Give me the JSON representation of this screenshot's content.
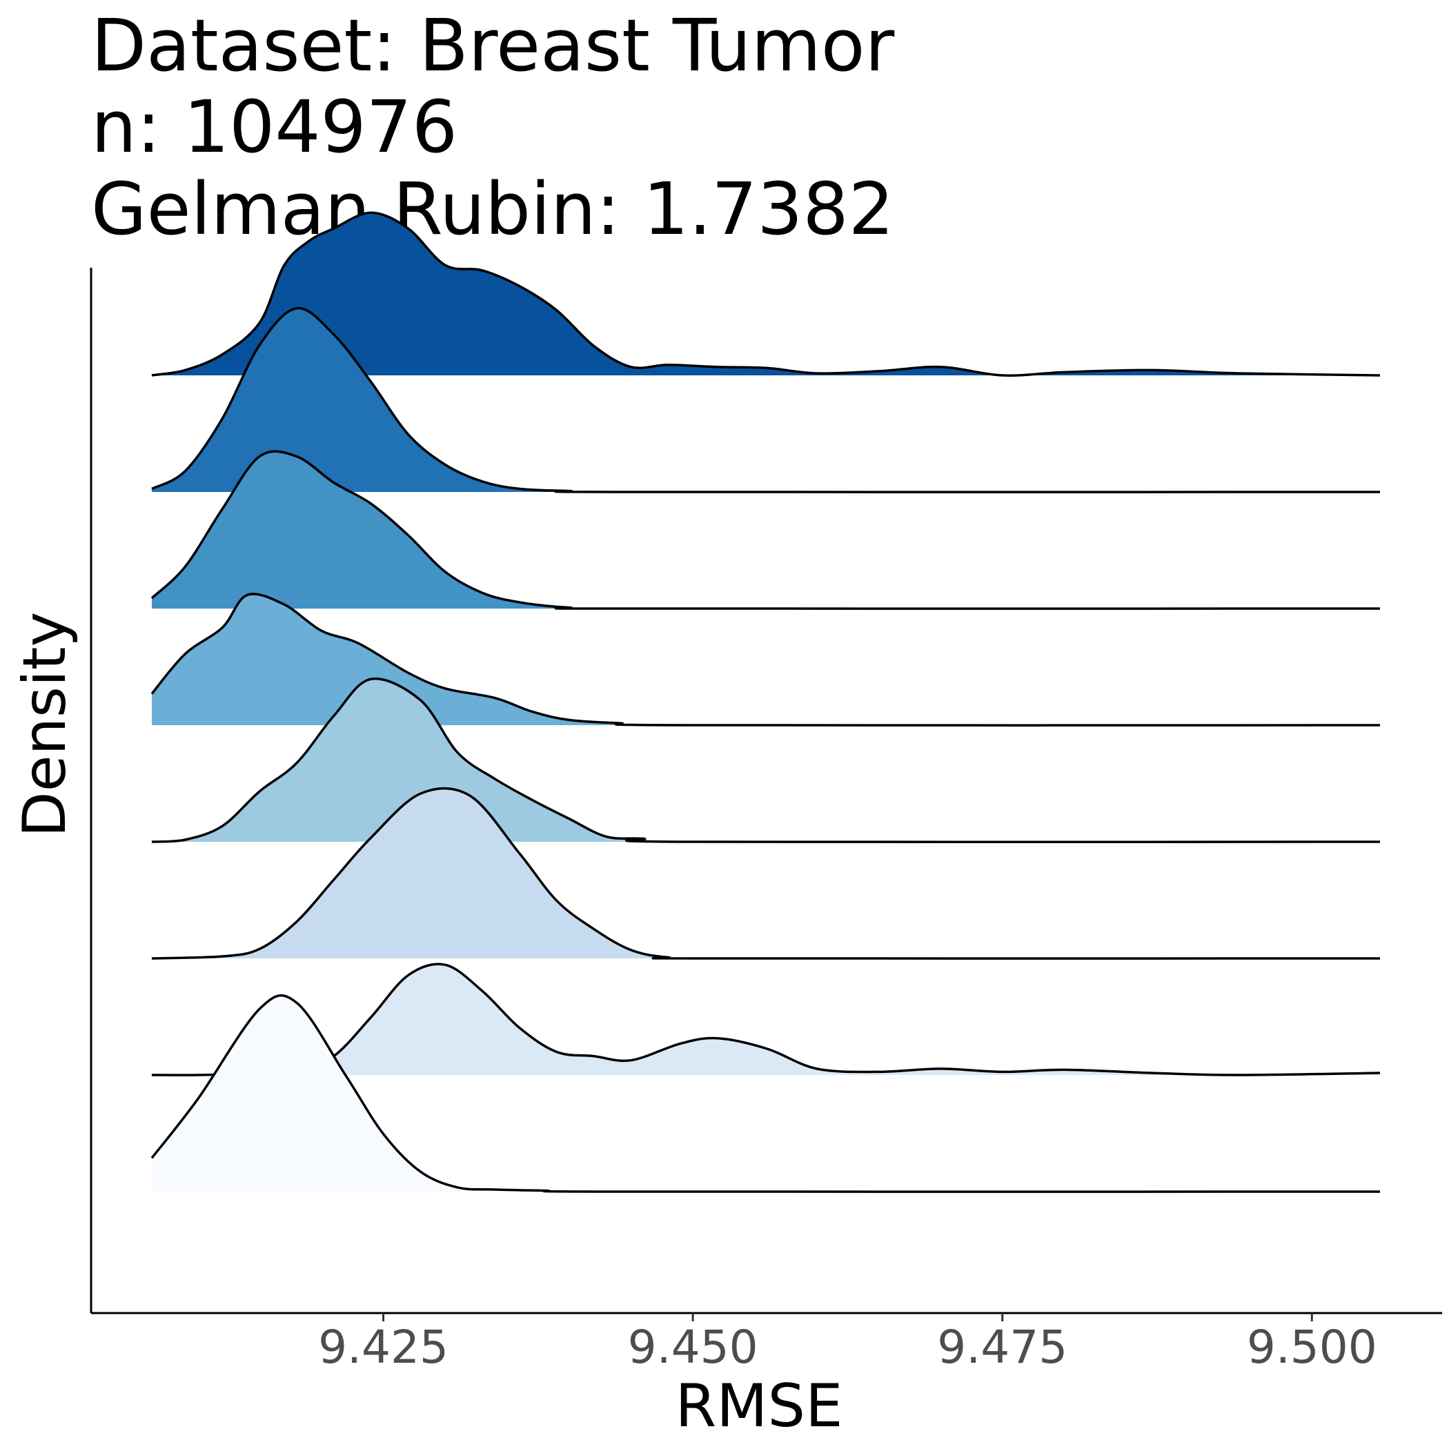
{
  "title_lines": [
    "Dataset: Breast Tumor",
    "n: 104976",
    "Gelman Rubin: 1.7382"
  ],
  "chart_data": {
    "type": "ridgeline",
    "title": "Dataset: Breast Tumor\nn: 104976\nGelman Rubin: 1.7382",
    "xlabel": "RMSE",
    "ylabel": "Density",
    "xlim": [
      9.4063,
      9.5055
    ],
    "x_ticks": [
      9.425,
      9.45,
      9.475,
      9.5
    ],
    "x_tick_labels": [
      "9.425",
      "9.450",
      "9.475",
      "9.500"
    ],
    "grid": false,
    "legend": "none",
    "ridge_height_scale": 1.27,
    "series": [
      {
        "fill": "#f7fbff",
        "x": [
          9.4063,
          9.41,
          9.415,
          9.418,
          9.422,
          9.425,
          9.428,
          9.431,
          9.434,
          9.438,
          9.445,
          9.5055
        ],
        "density": [
          0.32,
          0.88,
          1.74,
          1.8,
          1.1,
          0.55,
          0.19,
          0.04,
          0.02,
          0.01,
          0.0,
          0.0
        ]
      },
      {
        "fill": "#dbe9f6",
        "x": [
          9.4063,
          9.41,
          9.414,
          9.418,
          9.421,
          9.424,
          9.427,
          9.43,
          9.433,
          9.436,
          9.439,
          9.442,
          9.445,
          9.449,
          9.452,
          9.456,
          9.46,
          9.465,
          9.47,
          9.475,
          9.48,
          9.487,
          9.494,
          9.5055
        ],
        "density": [
          0.0,
          0.0,
          0.01,
          0.03,
          0.18,
          0.55,
          0.95,
          1.05,
          0.8,
          0.45,
          0.22,
          0.18,
          0.14,
          0.3,
          0.35,
          0.25,
          0.06,
          0.03,
          0.06,
          0.03,
          0.05,
          0.02,
          0.0,
          0.02
        ]
      },
      {
        "fill": "#c6dbef",
        "x": [
          9.4063,
          9.412,
          9.415,
          9.418,
          9.421,
          9.424,
          9.428,
          9.432,
          9.436,
          9.439,
          9.442,
          9.445,
          9.448,
          9.452,
          9.5055
        ],
        "density": [
          0.0,
          0.02,
          0.09,
          0.35,
          0.75,
          1.15,
          1.57,
          1.55,
          1.0,
          0.55,
          0.28,
          0.08,
          0.01,
          0.0,
          0.0
        ]
      },
      {
        "fill": "#9ecae1",
        "x": [
          9.4063,
          9.409,
          9.412,
          9.415,
          9.418,
          9.421,
          9.424,
          9.428,
          9.431,
          9.434,
          9.437,
          9.44,
          9.443,
          9.446,
          9.45,
          9.5055
        ],
        "density": [
          0.0,
          0.02,
          0.15,
          0.48,
          0.75,
          1.2,
          1.55,
          1.35,
          0.85,
          0.6,
          0.4,
          0.22,
          0.05,
          0.03,
          0.0,
          0.0
        ]
      },
      {
        "fill": "#6baed6",
        "x": [
          9.4063,
          9.409,
          9.412,
          9.414,
          9.417,
          9.42,
          9.423,
          9.427,
          9.43,
          9.434,
          9.437,
          9.44,
          9.444,
          9.45,
          9.5055
        ],
        "density": [
          0.3,
          0.68,
          0.93,
          1.24,
          1.15,
          0.9,
          0.78,
          0.5,
          0.35,
          0.26,
          0.13,
          0.05,
          0.02,
          0.0,
          0.0
        ]
      },
      {
        "fill": "#4292c6",
        "x": [
          9.4063,
          9.409,
          9.412,
          9.415,
          9.418,
          9.421,
          9.424,
          9.427,
          9.43,
          9.433,
          9.436,
          9.44,
          9.445,
          9.5055
        ],
        "density": [
          0.1,
          0.4,
          0.95,
          1.45,
          1.45,
          1.2,
          1.0,
          0.7,
          0.35,
          0.15,
          0.06,
          0.01,
          0.0,
          0.0
        ]
      },
      {
        "fill": "#2171b5",
        "x": [
          9.4063,
          9.409,
          9.412,
          9.415,
          9.418,
          9.421,
          9.424,
          9.427,
          9.43,
          9.433,
          9.436,
          9.44,
          9.445,
          9.5055
        ],
        "density": [
          0.03,
          0.2,
          0.7,
          1.4,
          1.75,
          1.5,
          1.05,
          0.55,
          0.26,
          0.1,
          0.03,
          0.01,
          0.0,
          0.0
        ]
      },
      {
        "fill": "#08519c",
        "x": [
          9.4063,
          9.409,
          9.412,
          9.415,
          9.417,
          9.419,
          9.421,
          9.424,
          9.427,
          9.43,
          9.433,
          9.436,
          9.439,
          9.442,
          9.445,
          9.448,
          9.452,
          9.456,
          9.46,
          9.465,
          9.47,
          9.475,
          9.48,
          9.487,
          9.494,
          9.5055
        ],
        "density": [
          0.0,
          0.05,
          0.2,
          0.5,
          1.05,
          1.28,
          1.4,
          1.55,
          1.4,
          1.05,
          1.0,
          0.85,
          0.62,
          0.28,
          0.08,
          0.1,
          0.08,
          0.07,
          0.02,
          0.04,
          0.08,
          0.0,
          0.03,
          0.05,
          0.02,
          0.0
        ]
      }
    ]
  }
}
